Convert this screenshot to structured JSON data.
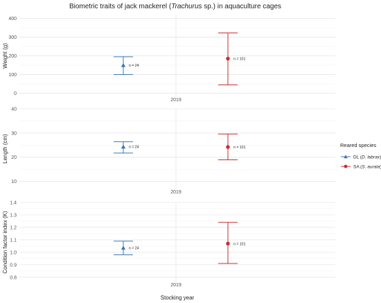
{
  "chart_data": {
    "type": "scatter",
    "title_parts": [
      "Biometric traits of jack mackerel (",
      "Trachurus",
      " sp.) in aquaculture cages"
    ],
    "xlabel": "Stocking year",
    "categories": [
      "2019"
    ],
    "legend": {
      "title": "Reared species",
      "position": "right",
      "entries": [
        {
          "code": "DL",
          "open": " (",
          "italic": "D. labrax",
          "close": ")",
          "color": "#3a78b5",
          "marker": "triangle"
        },
        {
          "code": "SA",
          "open": " (",
          "italic": "S. aurata",
          "close": ")",
          "color": "#cc2b2b",
          "marker": "circle"
        }
      ]
    },
    "panels": [
      {
        "ylabel": "Weight (g)",
        "ylim": [
          -20,
          420
        ],
        "yticks": [
          0,
          100,
          200,
          300,
          400
        ],
        "x_label": "2019",
        "series": [
          {
            "species": "DL",
            "mean": 150,
            "lower": 100,
            "upper": 195,
            "annotation": "n = 24"
          },
          {
            "species": "SA",
            "mean": 185,
            "lower": 45,
            "upper": 322,
            "annotation": "n = 101"
          }
        ]
      },
      {
        "ylabel": "Length (cm)",
        "ylim": [
          7,
          40
        ],
        "yticks": [
          10,
          20,
          30,
          40
        ],
        "x_label": "2019",
        "series": [
          {
            "species": "DL",
            "mean": 24.3,
            "lower": 21.7,
            "upper": 26.4,
            "annotation": "n = 24"
          },
          {
            "species": "SA",
            "mean": 24.2,
            "lower": 18.9,
            "upper": 29.6,
            "annotation": "n = 101"
          }
        ]
      },
      {
        "ylabel": "Condition  factor index (K)",
        "ylim": [
          0.76,
          1.4
        ],
        "yticks": [
          0.8,
          0.9,
          1.0,
          1.1,
          1.2,
          1.3,
          1.4
        ],
        "ytick_labels": [
          "0.8",
          "0.9",
          "1.0",
          "1.1",
          "1.2",
          "1.3",
          "1.4"
        ],
        "x_label": "2019",
        "series": [
          {
            "species": "DL",
            "mean": 1.035,
            "lower": 0.98,
            "upper": 1.09,
            "annotation": "n = 24"
          },
          {
            "species": "SA",
            "mean": 1.07,
            "lower": 0.91,
            "upper": 1.24,
            "annotation": "n = 101"
          }
        ]
      }
    ]
  }
}
